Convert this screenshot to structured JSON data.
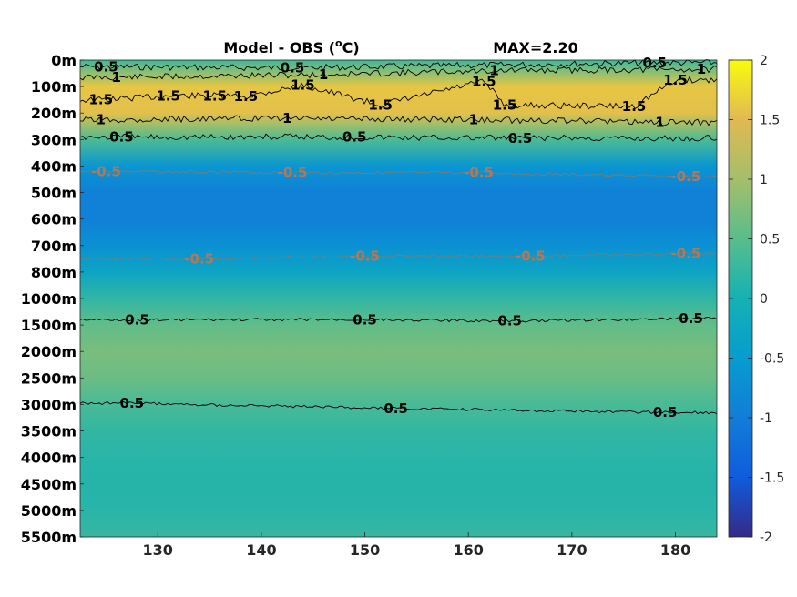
{
  "chart_data": {
    "type": "heatmap",
    "title": "Model - OBS (°C)",
    "title_parts": {
      "prefix": "Model - OBS (",
      "superscript": "o",
      "suffix": "C)"
    },
    "annotation": "MAX=2.20",
    "xlabel": "",
    "ylabel": "",
    "x_range": [
      122.5,
      184
    ],
    "x_ticks": [
      130,
      140,
      150,
      160,
      170,
      180
    ],
    "y_tick_labels": [
      "0m",
      "100m",
      "200m",
      "300m",
      "400m",
      "500m",
      "600m",
      "700m",
      "800m",
      "1000m",
      "1500m",
      "2000m",
      "2500m",
      "3000m",
      "3500m",
      "4000m",
      "4500m",
      "5000m",
      "5500m"
    ],
    "colorbar": {
      "range": [
        -2,
        2
      ],
      "ticks": [
        "2",
        "1.5",
        "1",
        "0.5",
        "0",
        "-0.5",
        "-1",
        "-1.5",
        "-2"
      ],
      "colormap": "parula"
    },
    "field_profile": {
      "depth_labels": [
        "0m",
        "100m",
        "200m",
        "300m",
        "400m",
        "500m",
        "600m",
        "700m",
        "800m",
        "1000m",
        "1500m",
        "2000m",
        "2500m",
        "3000m",
        "3500m",
        "4000m",
        "4500m",
        "5000m",
        "5500m"
      ],
      "values": [
        0.3,
        1.6,
        1.55,
        0.4,
        -0.6,
        -0.95,
        -0.95,
        -0.7,
        -0.3,
        0.2,
        0.55,
        0.72,
        0.62,
        0.38,
        0.22,
        0.15,
        0.12,
        0.15,
        0.25
      ]
    },
    "contours": [
      {
        "level": "0.5",
        "labels": [
          {
            "x": 125,
            "depth_index": 0.25
          },
          {
            "x": 143,
            "depth_index": 0.3
          },
          {
            "x": 178,
            "depth_index": 0.1
          },
          {
            "x": 126.5,
            "depth_index": 2.9
          },
          {
            "x": 149,
            "depth_index": 2.9
          },
          {
            "x": 165,
            "depth_index": 2.95
          },
          {
            "x": 128,
            "depth_index": 9.8
          },
          {
            "x": 150,
            "depth_index": 9.8
          },
          {
            "x": 164,
            "depth_index": 9.85
          },
          {
            "x": 181.5,
            "depth_index": 9.75
          },
          {
            "x": 127.5,
            "depth_index": 12.95
          },
          {
            "x": 153,
            "depth_index": 13.15
          },
          {
            "x": 179,
            "depth_index": 13.3
          }
        ]
      },
      {
        "level": "1",
        "labels": [
          {
            "x": 126,
            "depth_index": 0.65
          },
          {
            "x": 146,
            "depth_index": 0.55
          },
          {
            "x": 162.5,
            "depth_index": 0.4
          },
          {
            "x": 182.5,
            "depth_index": 0.35
          },
          {
            "x": 124.5,
            "depth_index": 2.25
          },
          {
            "x": 142.5,
            "depth_index": 2.2
          },
          {
            "x": 160.5,
            "depth_index": 2.25
          },
          {
            "x": 178.5,
            "depth_index": 2.35
          }
        ]
      },
      {
        "level": "1.5",
        "labels": [
          {
            "x": 124.5,
            "depth_index": 1.5
          },
          {
            "x": 131,
            "depth_index": 1.35
          },
          {
            "x": 135.5,
            "depth_index": 1.35
          },
          {
            "x": 138.5,
            "depth_index": 1.38
          },
          {
            "x": 144,
            "depth_index": 0.95
          },
          {
            "x": 161.5,
            "depth_index": 0.8
          },
          {
            "x": 151.5,
            "depth_index": 1.7
          },
          {
            "x": 163.5,
            "depth_index": 1.7
          },
          {
            "x": 180,
            "depth_index": 0.75
          },
          {
            "x": 176,
            "depth_index": 1.75
          }
        ]
      },
      {
        "level": "-0.5",
        "labels": [
          {
            "x": 125,
            "depth_index": 4.2
          },
          {
            "x": 143,
            "depth_index": 4.25
          },
          {
            "x": 161,
            "depth_index": 4.25
          },
          {
            "x": 181,
            "depth_index": 4.4
          },
          {
            "x": 134,
            "depth_index": 7.5
          },
          {
            "x": 150,
            "depth_index": 7.4
          },
          {
            "x": 166,
            "depth_index": 7.4
          },
          {
            "x": 181,
            "depth_index": 7.3
          }
        ]
      }
    ]
  }
}
